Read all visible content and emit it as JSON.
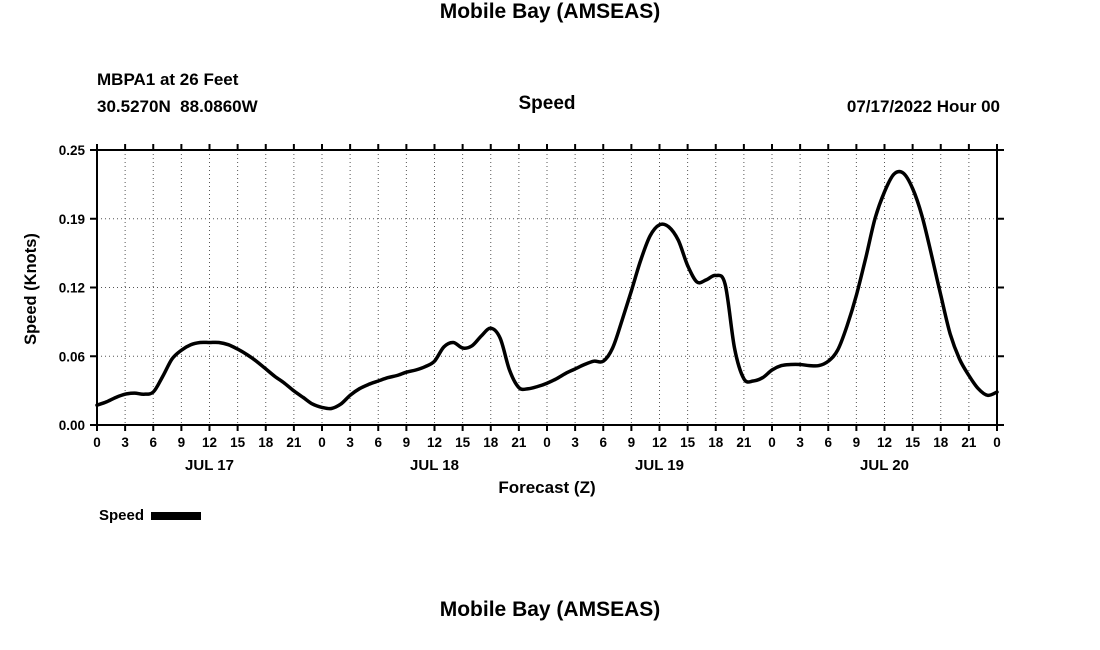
{
  "titles": {
    "top": "Mobile Bay (AMSEAS)",
    "bottom": "Mobile Bay (AMSEAS)"
  },
  "header": {
    "station": "MBPA1 at 26 Feet",
    "location": "30.5270N  88.0860W",
    "panel_title": "Speed",
    "init_time": "07/17/2022 Hour 00"
  },
  "legend": {
    "label": "Speed",
    "swatch_color": "#000000"
  },
  "chart_data": {
    "type": "line",
    "title": "Speed",
    "xlabel": "Forecast (Z)",
    "ylabel": "Speed (Knots)",
    "ylim": [
      0.0,
      0.25
    ],
    "ytick_values": [
      0.0,
      0.0625,
      0.125,
      0.1875,
      0.25
    ],
    "ytick_labels": [
      "0.00",
      "0.06",
      "0.12",
      "0.19",
      "0.25"
    ],
    "x_hours_range": [
      0,
      96
    ],
    "xtick_step_hours": 3,
    "xtick_cycle_labels": [
      "0",
      "3",
      "6",
      "9",
      "12",
      "15",
      "18",
      "21"
    ],
    "day_labels": [
      "JUL 17",
      "JUL 18",
      "JUL 19",
      "JUL 20"
    ],
    "grid": "dotted",
    "legend_position": "bottom-left",
    "line_color": "#000000",
    "line_width": 3.5,
    "series": [
      {
        "name": "Speed",
        "units": "Knots",
        "x_hours": [
          0,
          1,
          2,
          3,
          4,
          5,
          6,
          7,
          8,
          9,
          10,
          11,
          12,
          13,
          14,
          15,
          16,
          17,
          18,
          19,
          20,
          21,
          22,
          23,
          24,
          25,
          26,
          27,
          28,
          29,
          30,
          31,
          32,
          33,
          34,
          35,
          36,
          37,
          38,
          39,
          40,
          41,
          42,
          43,
          44,
          45,
          46,
          47,
          48,
          49,
          50,
          51,
          52,
          53,
          54,
          55,
          56,
          57,
          58,
          59,
          60,
          61,
          62,
          63,
          64,
          65,
          66,
          67,
          68,
          69,
          70,
          71,
          72,
          73,
          74,
          75,
          76,
          77,
          78,
          79,
          80,
          81,
          82,
          83,
          84,
          85,
          86,
          87,
          88,
          89,
          90,
          91,
          92,
          93,
          94,
          95,
          96
        ],
        "values": [
          0.018,
          0.021,
          0.025,
          0.028,
          0.029,
          0.028,
          0.03,
          0.044,
          0.06,
          0.068,
          0.073,
          0.075,
          0.075,
          0.075,
          0.073,
          0.069,
          0.064,
          0.058,
          0.051,
          0.044,
          0.038,
          0.031,
          0.025,
          0.019,
          0.016,
          0.015,
          0.019,
          0.027,
          0.033,
          0.037,
          0.04,
          0.043,
          0.045,
          0.048,
          0.05,
          0.053,
          0.058,
          0.071,
          0.075,
          0.07,
          0.072,
          0.081,
          0.088,
          0.079,
          0.05,
          0.034,
          0.033,
          0.035,
          0.038,
          0.042,
          0.047,
          0.051,
          0.055,
          0.058,
          0.058,
          0.07,
          0.095,
          0.122,
          0.15,
          0.172,
          0.182,
          0.18,
          0.168,
          0.145,
          0.13,
          0.132,
          0.136,
          0.128,
          0.07,
          0.042,
          0.04,
          0.043,
          0.05,
          0.054,
          0.055,
          0.055,
          0.054,
          0.054,
          0.058,
          0.068,
          0.09,
          0.118,
          0.152,
          0.188,
          0.212,
          0.228,
          0.229,
          0.215,
          0.19,
          0.155,
          0.118,
          0.083,
          0.06,
          0.045,
          0.033,
          0.027,
          0.03
        ]
      }
    ]
  }
}
